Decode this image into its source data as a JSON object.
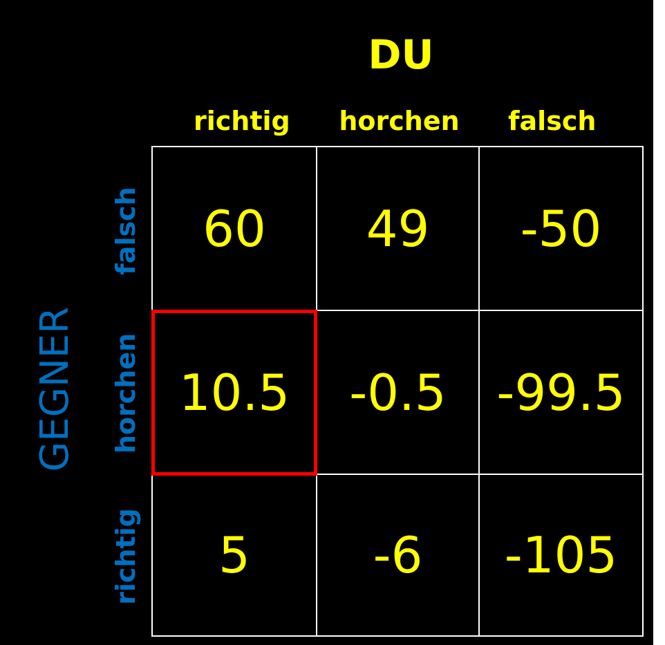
{
  "title": "DU",
  "side_title": "GEGNER",
  "columns": [
    "richtig",
    "horchen",
    "falsch"
  ],
  "rows": [
    "falsch",
    "horchen",
    "richtig"
  ],
  "values": [
    [
      "60",
      "49",
      "-50"
    ],
    [
      "10.5",
      "-0.5",
      "-99.5"
    ],
    [
      "5",
      "-6",
      "-105"
    ]
  ],
  "highlighted_cell": {
    "row": 1,
    "col": 0
  },
  "colors": {
    "background": "#000000",
    "title": "#ffff00",
    "column_labels": "#ffff00",
    "side_title": "#0070c0",
    "row_labels": "#0070c0",
    "values": "#ffff00",
    "grid_lines": "#ffffff",
    "highlight": "#ff0000"
  }
}
